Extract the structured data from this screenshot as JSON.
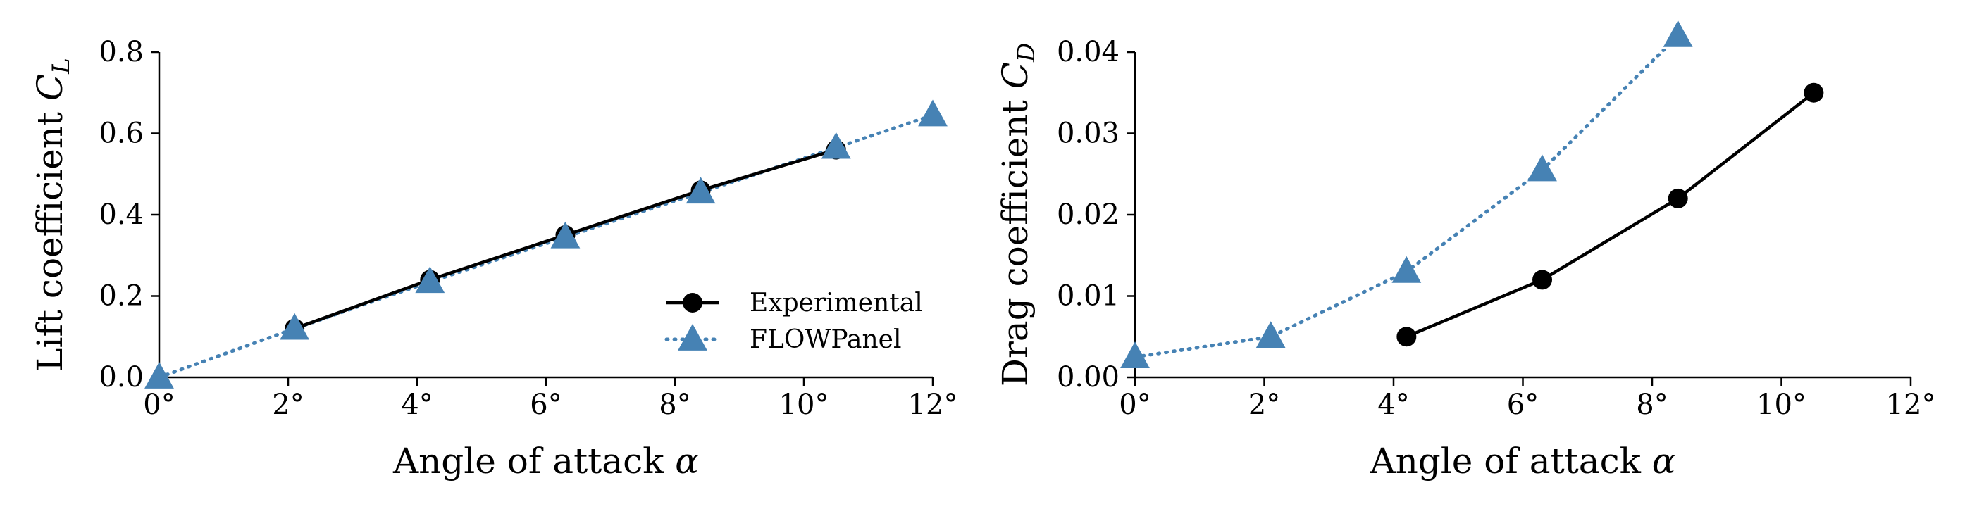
{
  "chart_data": [
    {
      "type": "line",
      "xlabel": "Angle of attack α",
      "ylabel": "Lift coefficient C_L",
      "xlim": [
        0,
        12
      ],
      "ylim": [
        0,
        0.8
      ],
      "xticks": [
        0,
        2,
        4,
        6,
        8,
        10,
        12
      ],
      "xtick_labels": [
        "0°",
        "2°",
        "4°",
        "6°",
        "8°",
        "10°",
        "12°"
      ],
      "yticks": [
        0,
        0.2,
        0.4,
        0.6,
        0.8
      ],
      "ytick_labels": [
        "0.0",
        "0.2",
        "0.4",
        "0.6",
        "0.8"
      ],
      "grid": false,
      "legend": "lower-right",
      "series": [
        {
          "name": "Experimental",
          "color": "#000000",
          "linestyle": "solid",
          "marker": "circle",
          "x": [
            2.1,
            4.2,
            6.3,
            8.4,
            10.5
          ],
          "y": [
            0.12,
            0.24,
            0.35,
            0.46,
            0.56
          ]
        },
        {
          "name": "FLOWPanel",
          "color": "#4682b4",
          "linestyle": "dotted",
          "marker": "triangle",
          "x": [
            0,
            2.1,
            4.2,
            6.3,
            8.4,
            10.5,
            12
          ],
          "y": [
            0.0,
            0.12,
            0.235,
            0.345,
            0.455,
            0.565,
            0.645
          ]
        }
      ]
    },
    {
      "type": "line",
      "xlabel": "Angle of attack α",
      "ylabel": "Drag coefficient C_D",
      "xlim": [
        0,
        12
      ],
      "ylim": [
        0,
        0.04
      ],
      "xticks": [
        0,
        2,
        4,
        6,
        8,
        10,
        12
      ],
      "xtick_labels": [
        "0°",
        "2°",
        "4°",
        "6°",
        "8°",
        "10°",
        "12°"
      ],
      "yticks": [
        0,
        0.01,
        0.02,
        0.03,
        0.04
      ],
      "ytick_labels": [
        "0.00",
        "0.01",
        "0.02",
        "0.03",
        "0.04"
      ],
      "grid": false,
      "series": [
        {
          "name": "Experimental",
          "color": "#000000",
          "linestyle": "solid",
          "marker": "circle",
          "x": [
            4.2,
            6.3,
            8.4,
            10.5
          ],
          "y": [
            0.005,
            0.012,
            0.022,
            0.035
          ]
        },
        {
          "name": "FLOWPanel",
          "color": "#4682b4",
          "linestyle": "dotted",
          "marker": "triangle",
          "x": [
            0,
            2.1,
            4.2,
            6.3,
            8.4
          ],
          "y": [
            0.0025,
            0.005,
            0.013,
            0.0255,
            0.042
          ]
        }
      ]
    }
  ]
}
